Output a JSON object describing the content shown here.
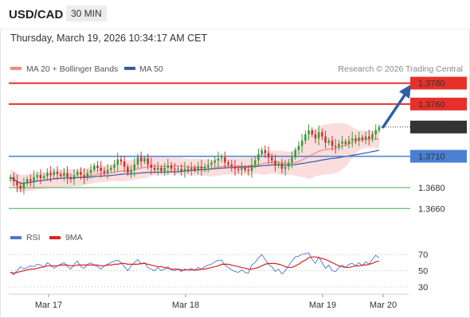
{
  "header": {
    "symbol": "USD/CAD",
    "interval": "30 MIN",
    "timestamp": "Thursday, March 19, 2026 10:34:17 AM CET"
  },
  "legend": {
    "ma20_label": "MA 20 + Bollinger Bands",
    "ma50_label": "MA 50",
    "credit": "Research © 2026 Trading Central",
    "rsi_label": "RSI",
    "rsi_ma_label": "9MA"
  },
  "colors": {
    "resistance": "#e8302a",
    "support_primary": "#4a7fd4",
    "support": "#3fae49",
    "current": "#333333",
    "arrow": "#2e5fa8",
    "up_candle": "#3a9a3a",
    "down_candle": "#d03030",
    "bollinger_fill": "#fbd9d9",
    "ma20": "#f08a8a",
    "ma50": "#3a5ba0",
    "rsi": "#4a78d0",
    "rsi_ma": "#dd2222"
  },
  "chart_data": [
    {
      "type": "candlestick",
      "title": "USD/CAD",
      "interval": "30 MIN",
      "x_ticks": [
        "Mar 17",
        "Mar 18",
        "Mar 19",
        "Mar 20"
      ],
      "ylim": [
        1.3645,
        1.3785
      ],
      "levels": [
        {
          "value": 1.378,
          "label": "1.3780",
          "kind": "resistance"
        },
        {
          "value": 1.376,
          "label": "1.3760",
          "kind": "resistance"
        },
        {
          "value": 1.3738,
          "label": "1.3738",
          "kind": "current"
        },
        {
          "value": 1.371,
          "label": "1.3710",
          "kind": "pivot"
        },
        {
          "value": 1.368,
          "label": "1.3680",
          "kind": "support"
        },
        {
          "value": 1.366,
          "label": "1.3660",
          "kind": "support"
        }
      ],
      "forecast_arrow": {
        "from": 1.3738,
        "to": 1.3775,
        "direction": "up"
      },
      "closes": [
        1.369,
        1.3686,
        1.3682,
        1.3679,
        1.3684,
        1.3688,
        1.3686,
        1.369,
        1.3692,
        1.3689,
        1.3691,
        1.3694,
        1.3692,
        1.3695,
        1.3693,
        1.3691,
        1.3694,
        1.369,
        1.3688,
        1.3692,
        1.3695,
        1.3692,
        1.369,
        1.3694,
        1.3697,
        1.3701,
        1.3699,
        1.3696,
        1.3694,
        1.3697,
        1.3699,
        1.3702,
        1.3707,
        1.3705,
        1.37,
        1.3694,
        1.3697,
        1.3702,
        1.3709,
        1.3705,
        1.3708,
        1.3702,
        1.3699,
        1.3697,
        1.3699,
        1.3696,
        1.3699,
        1.3701,
        1.3698,
        1.3697,
        1.3698,
        1.3696,
        1.3698,
        1.3697,
        1.3699,
        1.3697,
        1.37,
        1.3698,
        1.37,
        1.3702,
        1.3704,
        1.3706,
        1.3708,
        1.3709,
        1.3704,
        1.3702,
        1.37,
        1.3698,
        1.3697,
        1.3699,
        1.3697,
        1.3696,
        1.3702,
        1.3706,
        1.3712,
        1.3716,
        1.3713,
        1.3709,
        1.3706,
        1.3701,
        1.3703,
        1.3698,
        1.37,
        1.3704,
        1.3709,
        1.3716,
        1.372,
        1.3725,
        1.3731,
        1.3735,
        1.3731,
        1.3727,
        1.3733,
        1.3729,
        1.3723,
        1.3725,
        1.372,
        1.3719,
        1.3722,
        1.3724,
        1.3722,
        1.3725,
        1.3727,
        1.3725,
        1.3728,
        1.3726,
        1.3729,
        1.3727,
        1.3731,
        1.3735,
        1.3738
      ],
      "bollinger": {
        "period": 20,
        "std": 2
      },
      "ma50": {
        "period": 50
      }
    },
    {
      "type": "line",
      "title": "RSI",
      "ylim": [
        25,
        78
      ],
      "y_ticks": [
        70,
        50,
        30
      ],
      "series": [
        {
          "name": "RSI",
          "values": [
            48,
            45,
            50,
            55,
            52,
            54,
            56,
            55,
            58,
            57,
            54,
            60,
            57,
            53,
            56,
            58,
            60,
            55,
            52,
            58,
            62,
            55,
            53,
            58,
            60,
            57,
            55,
            52,
            56,
            58,
            60,
            62,
            63,
            60,
            55,
            50,
            56,
            60,
            64,
            58,
            60,
            54,
            52,
            50,
            54,
            50,
            52,
            55,
            51,
            50,
            52,
            49,
            52,
            51,
            53,
            50,
            54,
            52,
            55,
            57,
            58,
            61,
            63,
            63,
            57,
            54,
            51,
            49,
            48,
            51,
            48,
            47,
            57,
            60,
            66,
            70,
            64,
            58,
            55,
            49,
            52,
            46,
            50,
            56,
            62,
            67,
            68,
            70,
            71,
            72,
            64,
            59,
            67,
            60,
            53,
            57,
            50,
            49,
            54,
            57,
            54,
            58,
            59,
            56,
            60,
            56,
            61,
            58,
            64,
            69,
            66
          ]
        },
        {
          "name": "9MA",
          "values": [
            48,
            47,
            48,
            49,
            50,
            51,
            52,
            52,
            53,
            54,
            55,
            56,
            56,
            56,
            56,
            57,
            57,
            57,
            56,
            56,
            57,
            57,
            57,
            57,
            57,
            57,
            57,
            56,
            56,
            57,
            57,
            58,
            58,
            59,
            59,
            58,
            58,
            58,
            58,
            59,
            59,
            58,
            57,
            56,
            55,
            55,
            54,
            53,
            52,
            52,
            52,
            51,
            51,
            51,
            51,
            51,
            51,
            52,
            52,
            53,
            54,
            55,
            56,
            58,
            58,
            58,
            57,
            56,
            55,
            54,
            53,
            52,
            52,
            53,
            54,
            56,
            58,
            59,
            59,
            59,
            58,
            57,
            55,
            54,
            54,
            56,
            58,
            61,
            63,
            66,
            67,
            67,
            66,
            65,
            64,
            62,
            60,
            58,
            56,
            55,
            54,
            54,
            55,
            56,
            56,
            57,
            57,
            58,
            59,
            61,
            62
          ]
        }
      ]
    }
  ]
}
